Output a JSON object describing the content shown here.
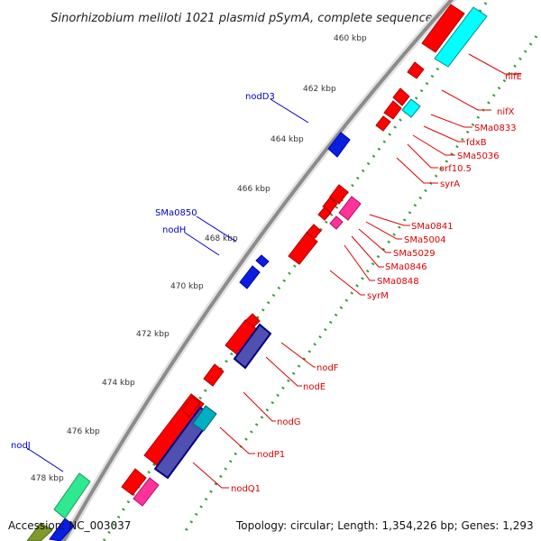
{
  "title": "Sinorhizobium meliloti 1021 plasmid pSymA, complete sequence",
  "footer": {
    "accession": "Accession: NC_003037",
    "summary": "Topology: circular; Length: 1,354,226 bp; Genes: 1,293"
  },
  "colors": {
    "forward_label": "#0000cc",
    "reverse_label": "#dd0000",
    "backbone": "#8c8c8c",
    "tick_dots": "#3a9b3a"
  },
  "ticks": [
    "460 kbp",
    "462 kbp",
    "464 kbp",
    "466 kbp",
    "468 kbp",
    "470 kbp",
    "472 kbp",
    "474 kbp",
    "476 kbp",
    "478 kbp"
  ],
  "forward_labels": [
    "nodD3",
    "SMa0850",
    "nodH",
    "nodJ"
  ],
  "reverse_labels": [
    "nifE",
    "nifX",
    "SMa0833",
    "fdxB",
    "SMa5036",
    "orf10.5",
    "syrA",
    "SMa0841",
    "SMa5004",
    "SMa5029",
    "SMa0846",
    "SMa0848",
    "syrM",
    "nodF",
    "nodE",
    "nodG",
    "nodP1",
    "nodQ1"
  ]
}
